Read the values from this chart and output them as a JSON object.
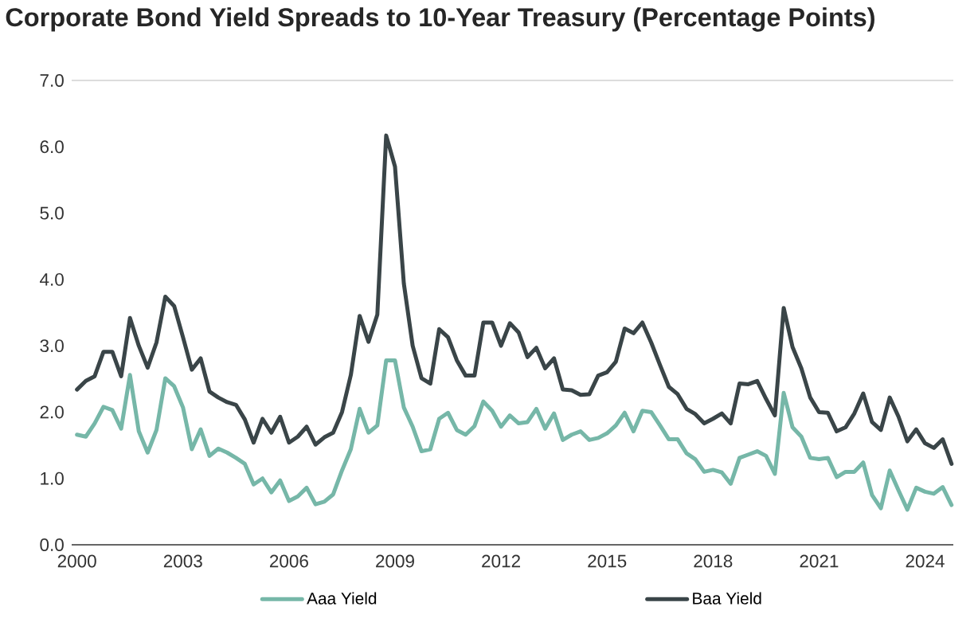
{
  "chart_data": {
    "type": "line",
    "title": "Corporate Bond Yield Spreads to 10-Year Treasury (Percentage Points)",
    "categories": [
      "2000",
      null,
      null,
      null,
      null,
      null,
      null,
      null,
      null,
      null,
      null,
      null,
      "2003",
      null,
      null,
      null,
      null,
      null,
      null,
      null,
      null,
      null,
      null,
      null,
      "2006",
      null,
      null,
      null,
      null,
      null,
      null,
      null,
      null,
      null,
      null,
      null,
      "2009",
      null,
      null,
      null,
      null,
      null,
      null,
      null,
      null,
      null,
      null,
      null,
      "2012",
      null,
      null,
      null,
      null,
      null,
      null,
      null,
      null,
      null,
      null,
      null,
      "2015",
      null,
      null,
      null,
      null,
      null,
      null,
      null,
      null,
      null,
      null,
      null,
      "2018",
      null,
      null,
      null,
      null,
      null,
      null,
      null,
      null,
      null,
      null,
      null,
      "2021",
      null,
      null,
      null,
      null,
      null,
      null,
      null,
      null,
      null,
      null,
      null,
      "2024",
      null,
      null,
      null
    ],
    "series": [
      {
        "name": "Aaa Yield",
        "color": "#76b7a8",
        "values": [
          1.66,
          1.63,
          1.83,
          2.08,
          2.03,
          1.75,
          2.56,
          1.71,
          1.39,
          1.73,
          2.51,
          2.39,
          2.07,
          1.44,
          1.74,
          1.34,
          1.45,
          1.39,
          1.31,
          1.22,
          0.91,
          1.0,
          0.79,
          0.97,
          0.66,
          0.73,
          0.86,
          0.61,
          0.65,
          0.76,
          1.12,
          1.44,
          2.05,
          1.69,
          1.8,
          2.78,
          2.78,
          2.07,
          1.78,
          1.41,
          1.44,
          1.9,
          1.99,
          1.73,
          1.66,
          1.79,
          2.16,
          2.02,
          1.78,
          1.95,
          1.83,
          1.85,
          2.05,
          1.75,
          1.98,
          1.58,
          1.66,
          1.71,
          1.58,
          1.61,
          1.68,
          1.8,
          1.99,
          1.71,
          2.02,
          2.0,
          1.8,
          1.59,
          1.59,
          1.38,
          1.29,
          1.1,
          1.13,
          1.09,
          0.92,
          1.31,
          1.36,
          1.41,
          1.34,
          1.07,
          2.29,
          1.77,
          1.63,
          1.31,
          1.29,
          1.31,
          1.02,
          1.1,
          1.1,
          1.24,
          0.75,
          0.55,
          1.12,
          0.82,
          0.53,
          0.86,
          0.8,
          0.77,
          0.87,
          0.6
        ]
      },
      {
        "name": "Baa Yield",
        "color": "#3a4548",
        "values": [
          2.34,
          2.47,
          2.54,
          2.91,
          2.91,
          2.54,
          3.42,
          3.0,
          2.67,
          3.05,
          3.74,
          3.6,
          3.13,
          2.64,
          2.81,
          2.31,
          2.22,
          2.15,
          2.11,
          1.89,
          1.54,
          1.9,
          1.69,
          1.93,
          1.54,
          1.63,
          1.78,
          1.51,
          1.62,
          1.69,
          2.0,
          2.56,
          3.45,
          3.06,
          3.47,
          6.17,
          5.7,
          3.94,
          3.0,
          2.51,
          2.43,
          3.25,
          3.13,
          2.78,
          2.55,
          2.55,
          3.35,
          3.35,
          3.0,
          3.34,
          3.2,
          2.83,
          2.97,
          2.66,
          2.81,
          2.34,
          2.33,
          2.26,
          2.27,
          2.55,
          2.6,
          2.76,
          3.26,
          3.19,
          3.35,
          3.05,
          2.71,
          2.38,
          2.27,
          2.05,
          1.97,
          1.83,
          1.9,
          1.98,
          1.83,
          2.43,
          2.42,
          2.47,
          2.2,
          1.95,
          3.57,
          2.98,
          2.66,
          2.22,
          2.0,
          1.99,
          1.71,
          1.77,
          1.98,
          2.28,
          1.85,
          1.73,
          2.22,
          1.93,
          1.56,
          1.74,
          1.53,
          1.46,
          1.59,
          1.22
        ]
      }
    ],
    "ylim": [
      0,
      7
    ],
    "yticks": [
      {
        "value": 0,
        "label": "0.0"
      },
      {
        "value": 1,
        "label": "1.0"
      },
      {
        "value": 2,
        "label": "2.0"
      },
      {
        "value": 3,
        "label": "3.0"
      },
      {
        "value": 4,
        "label": "4.0"
      },
      {
        "value": 5,
        "label": "5.0"
      },
      {
        "value": 6,
        "label": "6.0"
      },
      {
        "value": 7,
        "label": "7.0"
      }
    ],
    "legend": "bottom",
    "marker": "none",
    "line_style": "solid"
  }
}
